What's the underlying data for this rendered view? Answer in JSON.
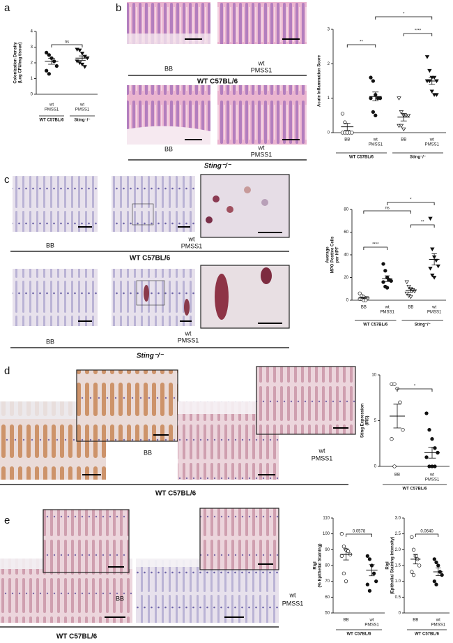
{
  "figure": {
    "panel_labels": [
      "a",
      "b",
      "c",
      "d",
      "e"
    ],
    "captions": [
      "BB",
      "wt",
      "PMSS1",
      "WT C57BL/6",
      "BB",
      "wt",
      "PMSS1",
      "Sting⁻/⁻",
      "BB",
      "wt",
      "PMSS1",
      "WT C57BL/6",
      "BB",
      "wt",
      "PMSS1",
      "Sting⁻/⁻",
      "BB",
      "wt",
      "PMSS1",
      "WT C57BL/6",
      "BB",
      "wt",
      "PMSS1",
      "WT C57BL/6"
    ]
  },
  "chart_data": [
    {
      "type": "dot",
      "y_label": [
        "Colonization Density",
        "(Log CFU/mg tissue)"
      ],
      "categories": [
        [
          "wt",
          "PMSS1"
        ],
        [
          "wt",
          "PMSS1"
        ]
      ],
      "groups": [
        "WT C57BL/6",
        "Sting⁻/⁻"
      ],
      "markers": [
        "filled-circle",
        "filled-triangle"
      ],
      "points": [
        [
          2.65,
          2.5,
          2.3,
          2.1,
          1.8,
          1.5,
          1.3
        ],
        [
          2.85,
          2.8,
          2.6,
          2.4,
          2.3,
          2.1,
          2.0,
          1.9,
          1.75
        ]
      ],
      "means": [
        2.1,
        2.3
      ],
      "sems": [
        0.19,
        0.14
      ],
      "ylim": [
        0,
        4
      ],
      "yticks": [
        0,
        1,
        2,
        3,
        4
      ],
      "comparisons": [
        {
          "pair": [
            0,
            1
          ],
          "label": "ns"
        }
      ]
    },
    {
      "type": "dot",
      "y_label": [
        "Acute Inflammation Score"
      ],
      "categories": [
        [
          "BB"
        ],
        [
          "wt",
          "PMSS1"
        ],
        [
          "BB"
        ],
        [
          "wt",
          "PMSS1"
        ]
      ],
      "groups": [
        "WT C57BL/6",
        "Sting⁻/⁻"
      ],
      "markers": [
        "open-circle",
        "filled-circle",
        "open-triangle",
        "filled-triangle"
      ],
      "points": [
        [
          0.55,
          0.3,
          0,
          0,
          0,
          0,
          0,
          0
        ],
        [
          1.6,
          1.5,
          1.1,
          1.0,
          1.0,
          1.0,
          0.6,
          0.5
        ],
        [
          1.0,
          0.6,
          0.5,
          0.5,
          0.5,
          0.2,
          0.2,
          0.1
        ],
        [
          2.2,
          1.8,
          1.6,
          1.6,
          1.5,
          1.5,
          1.5,
          1.2,
          1.1,
          1.1
        ]
      ],
      "means": [
        0.17,
        1.05,
        0.45,
        1.5
      ],
      "sems": [
        0.1,
        0.13,
        0.11,
        0.1
      ],
      "ylim": [
        0,
        3
      ],
      "yticks": [
        0,
        1,
        2,
        3
      ],
      "comparisons": [
        {
          "pair": [
            0,
            1
          ],
          "label": "**"
        },
        {
          "pair": [
            2,
            3
          ],
          "label": "****"
        },
        {
          "pair": [
            1,
            3
          ],
          "label": "*"
        }
      ]
    },
    {
      "type": "dot",
      "y_label": [
        "Average",
        "MPO Postive Cells",
        "per HPF"
      ],
      "categories": [
        [
          "BB"
        ],
        [
          "wt",
          "PMSS1"
        ],
        [
          "BB"
        ],
        [
          "wt",
          "PMSS1"
        ]
      ],
      "groups": [
        "WT C57BL/6",
        "Sting⁻/⁻"
      ],
      "markers": [
        "open-circle",
        "filled-circle",
        "open-triangle",
        "filled-triangle"
      ],
      "points": [
        [
          6,
          4,
          3,
          2,
          2,
          1,
          1,
          0,
          0
        ],
        [
          32,
          26,
          20,
          18,
          17,
          16,
          12,
          11
        ],
        [
          16,
          12,
          10,
          9,
          8,
          6,
          4,
          3
        ],
        [
          72,
          45,
          38,
          35,
          30,
          28,
          22,
          20
        ]
      ],
      "means": [
        2,
        19,
        8.5,
        36
      ],
      "sems": [
        0.7,
        2.5,
        1.5,
        5
      ],
      "ylim": [
        0,
        80
      ],
      "yticks": [
        0,
        20,
        40,
        60,
        80
      ],
      "comparisons": [
        {
          "pair": [
            0,
            1
          ],
          "label": "****"
        },
        {
          "pair": [
            2,
            3
          ],
          "label": "**"
        },
        {
          "pair": [
            0,
            2
          ],
          "label": "ns"
        },
        {
          "pair": [
            1,
            3
          ],
          "label": "*"
        }
      ]
    },
    {
      "type": "dot",
      "y_label": [
        "Sting Expression",
        "(IRS)"
      ],
      "categories": [
        [
          "BB"
        ],
        [
          "wt",
          "PMSS1"
        ]
      ],
      "groups": [
        "WT C57BL/6"
      ],
      "markers": [
        "open-circle",
        "filled-circle"
      ],
      "points": [
        [
          9,
          9,
          8.5,
          7,
          4,
          3,
          0
        ],
        [
          5.8,
          4,
          3,
          2,
          1.5,
          1,
          0,
          0,
          0
        ]
      ],
      "means": [
        5.5,
        1.5
      ],
      "sems": [
        1.3,
        0.6
      ],
      "ylim": [
        0,
        10
      ],
      "yticks": [
        0,
        5,
        10
      ],
      "comparisons": [
        {
          "pair": [
            0,
            1
          ],
          "label": "*"
        }
      ]
    },
    {
      "type": "dot",
      "y_label": [
        "RigI",
        "(% Epithelial Staining)"
      ],
      "categories": [
        [
          "BB"
        ],
        [
          "wt",
          "PMSS1"
        ]
      ],
      "groups": [
        "WT C57BL/6"
      ],
      "markers": [
        "open-circle",
        "filled-circle"
      ],
      "points": [
        [
          100,
          92,
          90,
          89,
          87,
          86,
          75,
          70
        ],
        [
          86,
          84,
          80,
          75,
          70,
          68,
          64
        ]
      ],
      "means": [
        87,
        77
      ],
      "sems": [
        3.5,
        3.5
      ],
      "ylim": [
        50,
        110
      ],
      "yticks": [
        50,
        60,
        70,
        80,
        90,
        100,
        110
      ],
      "comparisons": [
        {
          "pair": [
            0,
            1
          ],
          "label": "0.0578"
        }
      ]
    },
    {
      "type": "dot",
      "y_label": [
        "RigI",
        "(Epithelial Staining Intensity)"
      ],
      "categories": [
        [
          "BB"
        ],
        [
          "wt",
          "PMSS1"
        ]
      ],
      "groups": [
        "WT C57BL/6"
      ],
      "markers": [
        "open-circle",
        "filled-circle"
      ],
      "points": [
        [
          2.4,
          2.0,
          1.8,
          1.7,
          1.5,
          1.3,
          1.2
        ],
        [
          1.7,
          1.6,
          1.5,
          1.3,
          1.2,
          1.0,
          0.9
        ]
      ],
      "means": [
        1.7,
        1.3
      ],
      "sems": [
        0.15,
        0.12
      ],
      "ylim": [
        0,
        3
      ],
      "yticks": [
        0,
        0.5,
        {
          "value": 1,
          "label": "1.0"
        },
        1.5,
        {
          "value": 2,
          "label": "2.0"
        },
        2.5,
        {
          "value": 3,
          "label": "3.0"
        }
      ],
      "comparisons": [
        {
          "pair": [
            0,
            1
          ],
          "label": "0.0640"
        }
      ]
    }
  ]
}
